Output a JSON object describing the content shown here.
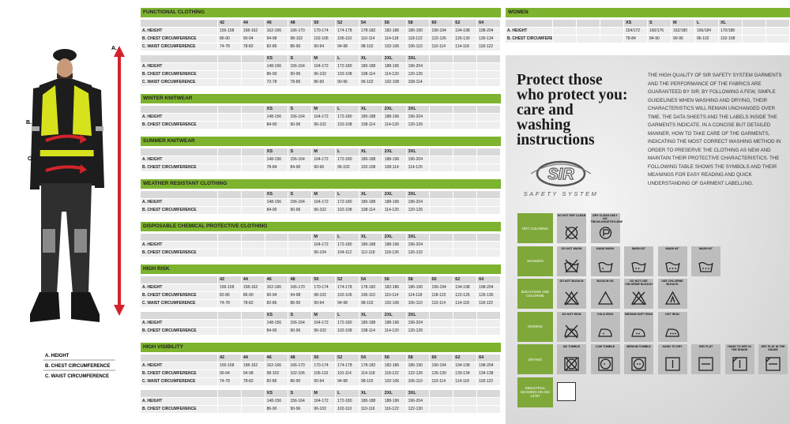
{
  "figure": {
    "arrow_labels": [
      "A.",
      "B.",
      "C."
    ],
    "legend": [
      "A. HEIGHT",
      "B. CHEST CIRCUMFERENCE",
      "C. WAIST CIRCUMFERENCE"
    ]
  },
  "sections": [
    {
      "title": "FUNCTIONAL CLOTHING",
      "tables": [
        {
          "sizes": [
            "42",
            "44",
            "46",
            "48",
            "50",
            "52",
            "54",
            "56",
            "58",
            "60",
            "62",
            "64"
          ],
          "rows": [
            {
              "label": "A. HEIGHT",
              "values": [
                "156-158",
                "158-162",
                "162-166",
                "166-170",
                "170-174",
                "174-178",
                "178-182",
                "182-186",
                "186-190",
                "190-194",
                "194-198",
                "198-204"
              ]
            },
            {
              "label": "B. CHEST CIRCUMFERENCE",
              "values": [
                "86-90",
                "90-94",
                "94-98",
                "98-102",
                "102-106",
                "106-110",
                "110-114",
                "114-118",
                "118-122",
                "122-126",
                "126-130",
                "130-134"
              ]
            },
            {
              "label": "C. WAIST CIRCUMFERENCE",
              "values": [
                "74-78",
                "78-82",
                "82-86",
                "86-90",
                "90-94",
                "94-98",
                "98-102",
                "102-106",
                "106-110",
                "110-114",
                "114-118",
                "118-122"
              ]
            }
          ]
        },
        {
          "sizes": [
            "XS",
            "S",
            "M",
            "L",
            "XL",
            "2XL",
            "3XL"
          ],
          "rows": [
            {
              "label": "A. HEIGHT",
              "values": [
                "148-156",
                "156-164",
                "164-172",
                "172-180",
                "180-188",
                "188-196",
                "196-204"
              ]
            },
            {
              "label": "B. CHEST CIRCUMFERENCE",
              "values": [
                "86-90",
                "90-96",
                "96-102",
                "102-108",
                "108-114",
                "114-120",
                "120-126"
              ]
            },
            {
              "label": "C. WAIST CIRCUMFERENCE",
              "values": [
                "72-78",
                "78-86",
                "86-90",
                "90-96",
                "96-102",
                "102-108",
                "108-114"
              ]
            }
          ]
        }
      ]
    },
    {
      "title": "WINTER KNITWEAR",
      "tables": [
        {
          "sizes": [
            "XS",
            "S",
            "M",
            "L",
            "XL",
            "2XL",
            "3XL"
          ],
          "rows": [
            {
              "label": "A. HEIGHT",
              "values": [
                "148-156",
                "156-164",
                "164-172",
                "172-180",
                "180-188",
                "188-196",
                "196-204"
              ]
            },
            {
              "label": "B. CHEST CIRCUMFERENCE",
              "values": [
                "84-90",
                "90-96",
                "96-102",
                "102-108",
                "108-114",
                "114-120",
                "120-126"
              ]
            }
          ]
        }
      ]
    },
    {
      "title": "SUMMER KNITWEAR",
      "tables": [
        {
          "sizes": [
            "XS",
            "S",
            "M",
            "L",
            "XL",
            "2XL",
            "3XL"
          ],
          "rows": [
            {
              "label": "A. HEIGHT",
              "values": [
                "148-156",
                "156-164",
                "164-172",
                "172-180",
                "180-188",
                "188-196",
                "196-204"
              ]
            },
            {
              "label": "B. CHEST CIRCUMFERENCE",
              "values": [
                "78-84",
                "84-90",
                "90-96",
                "96-102",
                "102-108",
                "108-114",
                "114-120"
              ]
            }
          ]
        }
      ]
    },
    {
      "title": "WEATHER RESISTANT CLOTHING",
      "tables": [
        {
          "sizes": [
            "XS",
            "S",
            "M",
            "L",
            "XL",
            "2XL",
            "3XL"
          ],
          "rows": [
            {
              "label": "A. HEIGHT",
              "values": [
                "148-156",
                "156-164",
                "164-172",
                "172-180",
                "180-188",
                "188-196",
                "196-204"
              ]
            },
            {
              "label": "B. CHEST CIRCUMFERENCE",
              "values": [
                "84-90",
                "90-96",
                "96-102",
                "102-108",
                "108-114",
                "114-120",
                "120-126"
              ]
            }
          ]
        }
      ]
    },
    {
      "title": "DISPOSABLE CHEMICAL PROTECTIVE CLOTHING",
      "tables": [
        {
          "sizes": [
            "M",
            "L",
            "XL",
            "2XL",
            "3XL"
          ],
          "rows": [
            {
              "label": "A. HEIGHT",
              "values": [
                "164-172",
                "172-180",
                "180-188",
                "188-196",
                "196-204"
              ]
            },
            {
              "label": "B. CHEST CIRCUMFERENCE",
              "values": [
                "96-104",
                "104-112",
                "112-118",
                "118-126",
                "126-132"
              ]
            }
          ]
        }
      ]
    },
    {
      "title": "HIGH RISK",
      "tables": [
        {
          "sizes": [
            "42",
            "44",
            "46",
            "48",
            "50",
            "52",
            "54",
            "56",
            "58",
            "60",
            "62",
            "64"
          ],
          "rows": [
            {
              "label": "A. HEIGHT",
              "values": [
                "156-158",
                "158-162",
                "162-166",
                "166-170",
                "170-174",
                "174-178",
                "178-182",
                "182-186",
                "186-190",
                "190-194",
                "194-198",
                "198-204"
              ]
            },
            {
              "label": "B. CHEST CIRCUMFERENCE",
              "values": [
                "82-86",
                "86-90",
                "90-94",
                "94-98",
                "98-102",
                "102-106",
                "106-110",
                "110-114",
                "114-118",
                "118-122",
                "122-126",
                "126-130"
              ]
            },
            {
              "label": "C. WAIST CIRCUMFERENCE",
              "values": [
                "74-78",
                "78-82",
                "82-86",
                "86-90",
                "90-94",
                "94-98",
                "98-102",
                "102-106",
                "106-110",
                "110-114",
                "114-118",
                "118-122"
              ]
            }
          ]
        },
        {
          "sizes": [
            "XS",
            "S",
            "M",
            "L",
            "XL",
            "2XL",
            "3XL"
          ],
          "rows": [
            {
              "label": "A. HEIGHT",
              "values": [
                "148-156",
                "156-164",
                "164-172",
                "172-180",
                "180-188",
                "188-196",
                "196-204"
              ]
            },
            {
              "label": "B. CHEST CIRCUMFERENCE",
              "values": [
                "84-90",
                "90-96",
                "96-102",
                "102-108",
                "108-114",
                "114-120",
                "120-126"
              ]
            }
          ]
        }
      ]
    },
    {
      "title": "HIGH VISIBILITY",
      "tables": [
        {
          "sizes": [
            "42",
            "44",
            "46",
            "48",
            "50",
            "52",
            "54",
            "56",
            "58",
            "60",
            "62",
            "64"
          ],
          "rows": [
            {
              "label": "A. HEIGHT",
              "values": [
                "156-158",
                "158-162",
                "162-166",
                "166-170",
                "170-174",
                "174-178",
                "178-182",
                "182-186",
                "186-190",
                "190-194",
                "194-198",
                "198-204"
              ]
            },
            {
              "label": "B. CHEST CIRCUMFERENCE",
              "values": [
                "90-94",
                "94-98",
                "98-102",
                "102-106",
                "106-110",
                "110-114",
                "114-118",
                "118-122",
                "122-126",
                "126-130",
                "130-134",
                "134-138"
              ]
            },
            {
              "label": "C. WAIST CIRCUMFERENCE",
              "values": [
                "74-78",
                "78-82",
                "82-86",
                "86-90",
                "90-94",
                "94-98",
                "98-102",
                "102-106",
                "106-110",
                "110-114",
                "114-118",
                "118-122"
              ]
            }
          ]
        },
        {
          "sizes": [
            "XS",
            "S",
            "M",
            "L",
            "XL",
            "2XL",
            "3XL"
          ],
          "rows": [
            {
              "label": "A. HEIGHT",
              "values": [
                "148-156",
                "156-164",
                "164-172",
                "172-180",
                "180-188",
                "188-196",
                "196-204"
              ]
            },
            {
              "label": "B. CHEST CIRCUMFERENCE",
              "values": [
                "86-90",
                "90-96",
                "96-102",
                "102-110",
                "110-116",
                "116-122",
                "122-130"
              ]
            }
          ]
        }
      ]
    }
  ],
  "women": {
    "title": "WOMEN",
    "sizes": [
      "XS",
      "S",
      "M",
      "L",
      "XL"
    ],
    "rows": [
      {
        "label": "A. HEIGHT",
        "values": [
          "154/172",
          "160/176",
          "162/180",
          "166/184",
          "170/188"
        ]
      },
      {
        "label": "B. CHEST CIRCUMFERENCE",
        "values": [
          "78-84",
          "84-90",
          "90-96",
          "96-102",
          "102-108"
        ]
      }
    ]
  },
  "care": {
    "title_lines": [
      "Protect those",
      "who protect you:",
      "care and",
      "washing",
      "instructions"
    ],
    "text": "THE HIGH QUALITY OF SIR SAFETY SYSTEM GARMENTS AND THE PERFORMANCE OF THE FABRICS ARE GUARANTEED BY SIR; BY FOLLOWING A FEW, SIMPLE GUIDELINES WHEN WASHING AND DRYING, THEIR CHARACTERISTICS WILL REMAIN UNCHANGED OVER TIME. THE DATA SHEETS AND THE LABELS INSIDE THE GARMENTS INDICATE, IN A CONCISE BUT DETAILED MANNER, HOW TO TAKE CARE OF THE GARMENTS, INDICATING THE MOST CORRECT WASHING METHOD IN ORDER TO PRESERVE THE CLOTHING AS NEW AND MAINTAIN THEIR PROTECTIVE CHARACTERISTICS. THE FOLLOWING TABLE SHOWS THE SYMBOLS AND THEIR MEANINGS FOR EASY READING AND QUICK UNDERSTANDING OF GARMENT LABELLING.",
    "logo": "SIR",
    "logo_caption": "SAFETY SYSTEM",
    "rows": [
      {
        "category": "DRY CLEANING",
        "symbols": [
          "DO NOT DRY CLEAN",
          "DRY CLEAN ONLY NO TRICHLOROETHYLENE"
        ]
      },
      {
        "category": "WASHING",
        "symbols": [
          "DO NOT WASH",
          "HAND WASH",
          "WASH 30°",
          "WASH 40°",
          "WASH 60°"
        ]
      },
      {
        "category": "BLEACHING AND CHLORINE",
        "symbols": [
          "DO NOT BLEACH",
          "BLEACH OK",
          "DO NOT USE CHLORINE BLEACH",
          "USE CHLORINE BLEACH"
        ]
      },
      {
        "category": "IRONING",
        "symbols": [
          "DO NOT IRON",
          "COLD IRON",
          "MEDIUM SOFT IRON",
          "HOT IRON"
        ]
      },
      {
        "category": "DRYING",
        "symbols": [
          "NO TUMBLE",
          "LOW TUMBLE",
          "MEDIUM TUMBLE",
          "HANG TO DRY",
          "DRY FLAT",
          "HANG TO DRY IN THE SHADE",
          "DRY FLAT IN THE SHADE"
        ]
      },
      {
        "category": "INDUSTRIAL WASHING EN ISO 15797",
        "symbols": []
      }
    ]
  }
}
